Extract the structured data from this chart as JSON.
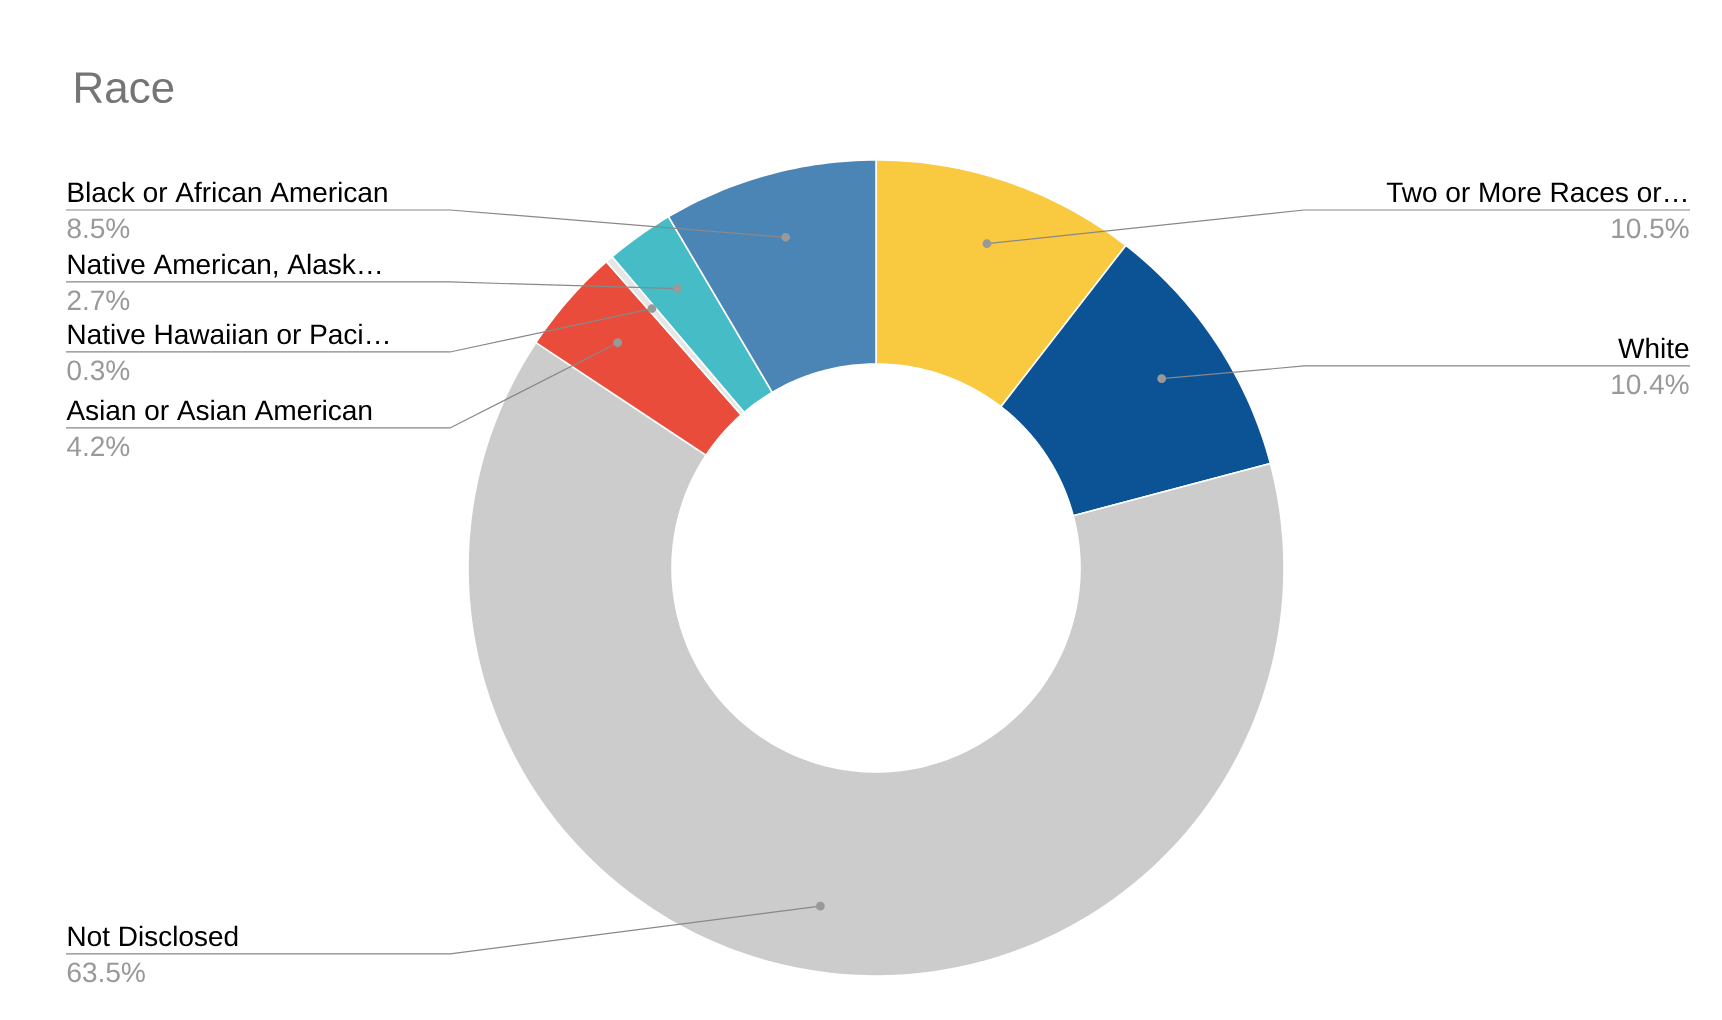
{
  "chart_data": {
    "type": "donut",
    "title": "Race",
    "categories": [
      "Two or More Races or…",
      "White",
      "Not Disclosed",
      "Asian or Asian American",
      "Native Hawaiian or Paci…",
      "Native American, Alask…",
      "Black or African American"
    ],
    "values": [
      10.5,
      10.4,
      63.5,
      4.2,
      0.3,
      2.7,
      8.5
    ],
    "colors": [
      "#f9c940",
      "#0b5394",
      "#cccccc",
      "#e94c3b",
      "#e6e6e6",
      "#46bdc6",
      "#4a85b5"
    ],
    "value_labels": [
      "10.5%",
      "10.4%",
      "63.5%",
      "4.2%",
      "0.3%",
      "2.7%",
      "8.5%"
    ]
  }
}
